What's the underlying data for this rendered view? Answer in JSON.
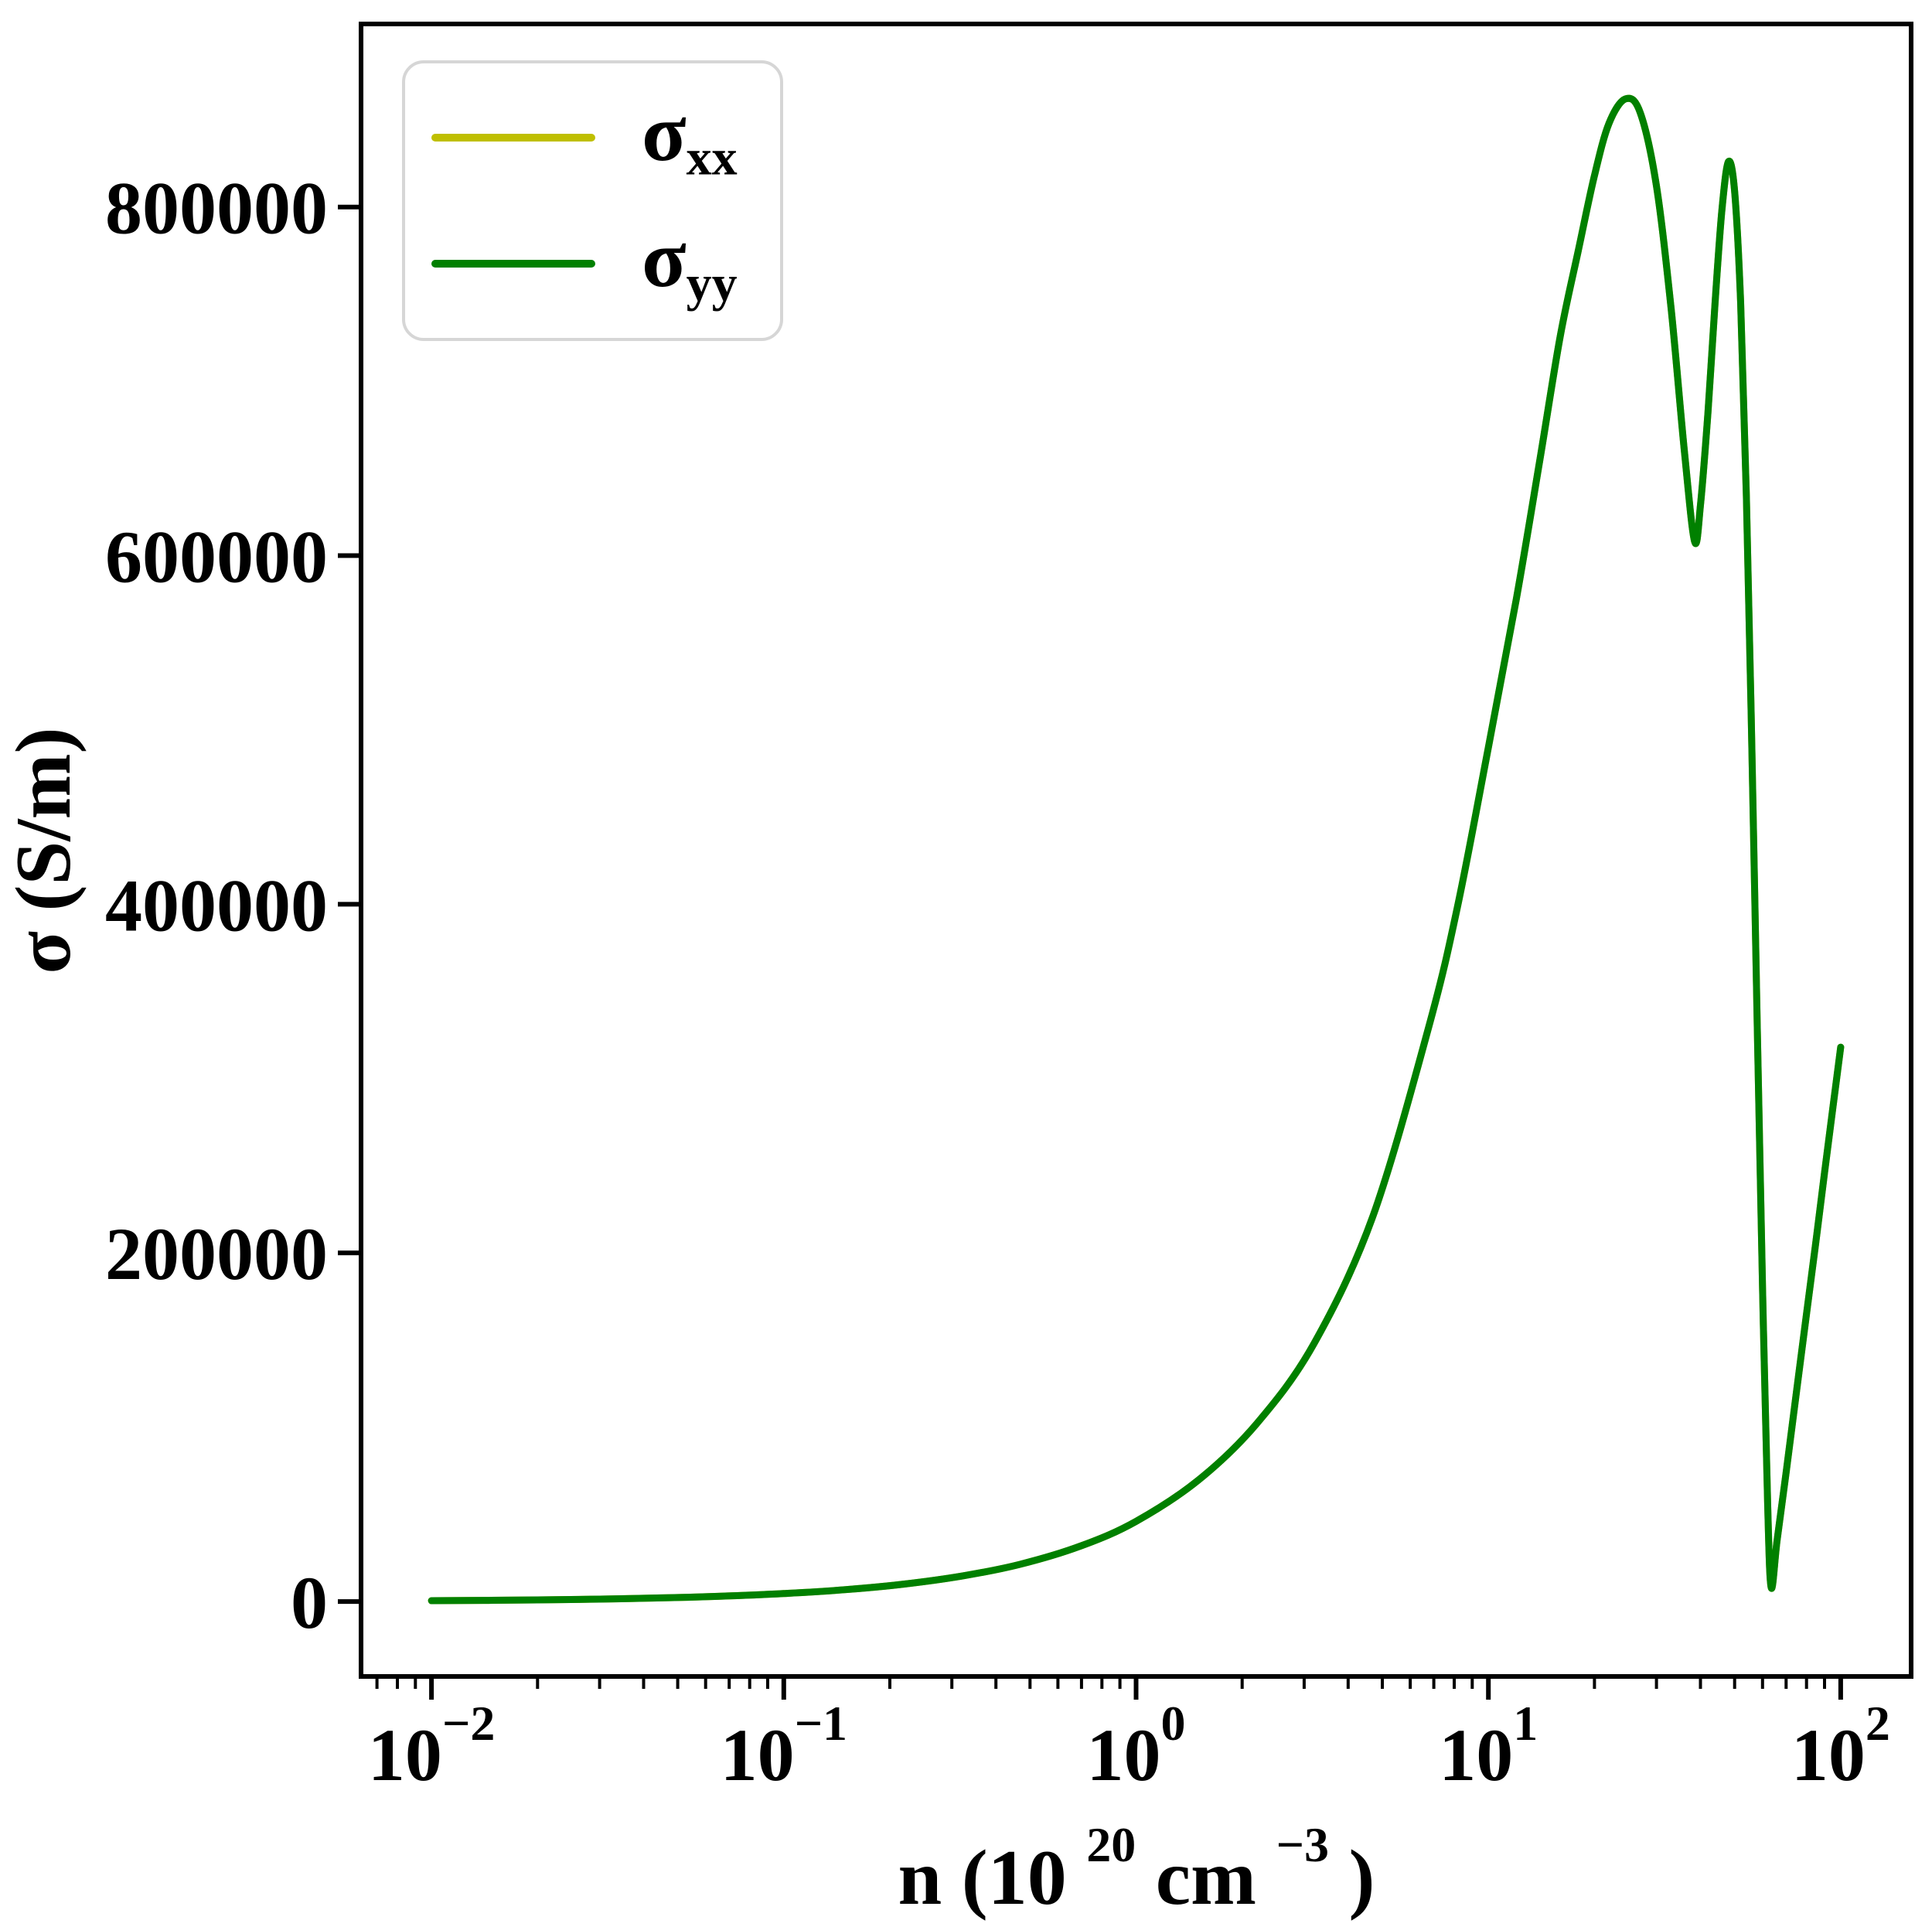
{
  "axes": {
    "ylabel": "σ (S/m)",
    "xlabel_parts": {
      "prefix": "n (10",
      "sup1": "20",
      "mid": " cm",
      "sup2": "−3",
      "suffix": ")"
    }
  },
  "legend": {
    "entries": [
      {
        "label_base": "σ",
        "label_sub": "xx",
        "color": "#bfbf00"
      },
      {
        "label_base": "σ",
        "label_sub": "yy",
        "color": "#008000"
      }
    ]
  },
  "chart_data": {
    "type": "line",
    "title": "",
    "xlabel": "n (10^20 cm^-3)",
    "ylabel": "σ (S/m)",
    "x_scale": "log10",
    "xlim_log10": [
      -2.2,
      2.2
    ],
    "ylim": [
      -43000,
      905000
    ],
    "grid": false,
    "legend_position": "upper-left",
    "x_major_ticks": [
      {
        "log10": -2,
        "base": "10",
        "exp": "−2"
      },
      {
        "log10": -1,
        "base": "10",
        "exp": "−1"
      },
      {
        "log10": 0,
        "base": "10",
        "exp": "0"
      },
      {
        "log10": 1,
        "base": "10",
        "exp": "1"
      },
      {
        "log10": 2,
        "base": "10",
        "exp": "2"
      }
    ],
    "x_minor_ticks_mantissas": [
      2,
      3,
      4,
      5,
      6,
      7,
      8,
      9
    ],
    "y_ticks": [
      {
        "value": 0,
        "label": "0"
      },
      {
        "value": 200000,
        "label": "200000"
      },
      {
        "value": 400000,
        "label": "400000"
      },
      {
        "value": 600000,
        "label": "600000"
      },
      {
        "value": 800000,
        "label": "800000"
      }
    ],
    "x": [
      0.01,
      0.014,
      0.02,
      0.03,
      0.045,
      0.065,
      0.1,
      0.15,
      0.22,
      0.32,
      0.47,
      0.7,
      1.0,
      1.5,
      2.2,
      3.2,
      4.7,
      6.8,
      8.2,
      10,
      12,
      14,
      16,
      18,
      20,
      22,
      24.5,
      27,
      30,
      33,
      36,
      38.5,
      40,
      42,
      44,
      46,
      48,
      50,
      52,
      54,
      56,
      58,
      60,
      62,
      63.5,
      66,
      70,
      75,
      80,
      85,
      90,
      95,
      100
    ],
    "series": [
      {
        "name": "σ_xx",
        "color": "#bfbf00",
        "values": [
          455,
          640,
          910,
          1370,
          2050,
          2960,
          4550,
          6800,
          10000,
          14600,
          21400,
          32000,
          46000,
          69500,
          102000,
          148000,
          221000,
          331000,
          400000,
          490000,
          575000,
          655000,
          726000,
          775000,
          818000,
          848000,
          862000,
          854000,
          812000,
          742000,
          660000,
          608000,
          629000,
          682000,
          745000,
          798000,
          826000,
          809000,
          745000,
          634000,
          487000,
          327000,
          180000,
          58000,
          8000,
          35000,
          74000,
          121000,
          165000,
          206000,
          246000,
          283000,
          318000
        ]
      },
      {
        "name": "σ_yy",
        "color": "#008000",
        "values": [
          455,
          640,
          910,
          1370,
          2050,
          2960,
          4550,
          6800,
          10000,
          14600,
          21400,
          32000,
          46000,
          69500,
          102000,
          148000,
          221000,
          331000,
          400000,
          490000,
          575000,
          655000,
          726000,
          775000,
          818000,
          848000,
          862000,
          854000,
          812000,
          742000,
          660000,
          608000,
          629000,
          682000,
          745000,
          798000,
          826000,
          809000,
          745000,
          634000,
          487000,
          327000,
          180000,
          58000,
          8000,
          35000,
          74000,
          121000,
          165000,
          206000,
          246000,
          283000,
          318000
        ]
      }
    ]
  }
}
